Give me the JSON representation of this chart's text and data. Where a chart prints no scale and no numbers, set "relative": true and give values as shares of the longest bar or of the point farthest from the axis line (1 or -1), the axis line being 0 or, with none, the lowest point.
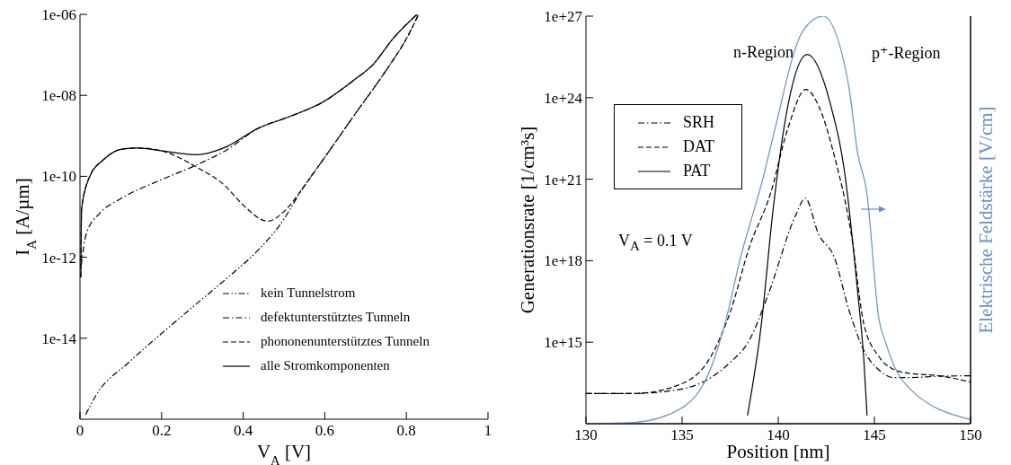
{
  "chart_data": [
    {
      "type": "line",
      "xlabel": "V$_{A}$ [V]",
      "ylabel": "I$_{A}$ [A/µm]",
      "log": "y",
      "legend": "bottom right",
      "xlim": [
        0,
        1
      ],
      "xticks": [
        0,
        0.2,
        0.4,
        0.6,
        0.8,
        1
      ],
      "ylim": [
        1e-16,
        1e-06
      ],
      "yticks": [
        {
          "value": 1e-14,
          "label": "1e-14"
        },
        {
          "value": 1e-12,
          "label": "1e-12"
        },
        {
          "value": 1e-10,
          "label": "1e-10"
        },
        {
          "value": 1e-08,
          "label": "1e-08"
        },
        {
          "value": 1e-06,
          "label": "1e-06"
        }
      ],
      "series": [
        {
          "name": "kein Tunnelstrom",
          "color": "#000000",
          "line_style": "dashdotdot",
          "x": [
            0.014,
            0.04,
            0.119,
            0.198,
            0.277,
            0.356,
            0.435,
            0.49,
            0.55,
            0.606,
            0.672,
            0.75,
            0.8,
            0.83
          ],
          "values": [
            1.3e-16,
            4e-16,
            2.5e-15,
            1.26e-14,
            6e-14,
            2.8e-13,
            1.45e-12,
            6.3e-12,
            5.8e-11,
            3.6e-10,
            3.2e-09,
            4.1e-08,
            2.5e-07,
            1e-06
          ]
        },
        {
          "name": "defektunterstütztes Tunneln",
          "color": "#000000",
          "line_style": "dashdot",
          "x": [
            0.003,
            0.016,
            0.05,
            0.1,
            0.2,
            0.28,
            0.36,
            0.435,
            0.514,
            0.593,
            0.672,
            0.72,
            0.767,
            0.826
          ],
          "values": [
            6.3e-13,
            4e-12,
            1.26e-11,
            2.8e-11,
            8.3e-11,
            1.8e-10,
            4.5e-10,
            1.5e-09,
            3e-09,
            6.6e-09,
            2.4e-08,
            6e-08,
            2.5e-07,
            1e-06
          ]
        },
        {
          "name": "phononenunterstütztes Tunneln",
          "color": "#000000",
          "line_style": "dashed",
          "x": [
            0.002,
            0.004,
            0.024,
            0.056,
            0.103,
            0.143,
            0.198,
            0.285,
            0.356,
            0.4,
            0.46,
            0.5,
            0.55,
            0.606,
            0.672,
            0.75,
            0.8,
            0.83
          ],
          "values": [
            3.2e-13,
            1.6e-11,
            1e-10,
            2.5e-10,
            4.7e-10,
            5e-10,
            4.3e-10,
            1.7e-10,
            5.8e-11,
            1.95e-11,
            7.8e-12,
            1.35e-11,
            5.8e-11,
            3.6e-10,
            3.2e-09,
            4.1e-08,
            2.5e-07,
            1e-06
          ]
        },
        {
          "name": "alle Stromkomponenten",
          "color": "#000000",
          "line_style": "solid",
          "x": [
            0.002,
            0.004,
            0.024,
            0.056,
            0.103,
            0.143,
            0.198,
            0.285,
            0.356,
            0.435,
            0.514,
            0.593,
            0.672,
            0.72,
            0.767,
            0.826
          ],
          "values": [
            3.2e-13,
            1.6e-11,
            1e-10,
            2.5e-10,
            4.7e-10,
            5e-10,
            4.3e-10,
            3.4e-10,
            5.2e-10,
            1.5e-09,
            3e-09,
            6.6e-09,
            2.4e-08,
            6e-08,
            2.5e-07,
            1e-06
          ]
        }
      ]
    },
    {
      "type": "line",
      "xlabel": "Position [nm]",
      "ylabel": "Generationsrate [1/cm³s]",
      "log": "y",
      "legend": "top left",
      "annotations": [
        "n-Region",
        "p⁺-Region",
        "V$_{A}$ = 0.1 V"
      ],
      "xlim": [
        130,
        150
      ],
      "xticks": [
        130,
        135,
        140,
        145,
        150
      ],
      "ylim": [
        1000000000000.0,
        1e+27
      ],
      "yticks": [
        {
          "value": 1000000000000000.0,
          "label": "1e+15"
        },
        {
          "value": 1e+18,
          "label": "1e+18"
        },
        {
          "value": 1e+21,
          "label": "1e+21"
        },
        {
          "value": 1e+24,
          "label": "1e+24"
        },
        {
          "value": 1e+27,
          "label": "1e+27"
        }
      ],
      "series": [
        {
          "name": "SRH",
          "color": "#000000",
          "line_style": "dashdot",
          "x": [
            130,
            132.5,
            135,
            136.5,
            137.5,
            138.5,
            139.5,
            140.9,
            141.4,
            142.1,
            142.9,
            143.7,
            144.45,
            145.2,
            146,
            146.8,
            148.4,
            150
          ],
          "values": [
            13000000000000.0,
            13000000000000.0,
            19000000000000.0,
            50000000000000.0,
            180000000000000.0,
            1200000000000000.0,
            6.3e+16,
            4.6e+19,
            2e+20,
            9.3e+18,
            1.4e+18,
            1.35e+16,
            500000000000000.0,
            100000000000000.0,
            50000000000000.0,
            50000000000000.0,
            56000000000000.0,
            58000000000000.0
          ]
        },
        {
          "name": "DAT",
          "color": "#000000",
          "line_style": "dashed",
          "x": [
            130,
            132.5,
            135,
            136.5,
            137.5,
            138.5,
            139.6,
            140.5,
            141.43,
            142.1,
            142.9,
            143.8,
            144.45,
            145.23,
            146,
            146.8,
            148.4,
            150
          ],
          "values": [
            13000000000000.0,
            13000000000000.0,
            30000000000000.0,
            300000000000000.0,
            1.26e+16,
            3.2e+18,
            3e+20,
            7.4e+22,
            2e+24,
            5e+23,
            8e+21,
            9.3e+18,
            4700000000000000.0,
            300000000000000.0,
            100000000000000.0,
            72000000000000.0,
            58000000000000.0,
            34000000000000.0
          ]
        },
        {
          "name": "PAT",
          "color": "#000000",
          "line_style": "solid",
          "x": [
            138.4,
            139.1,
            139.74,
            140.5,
            141.5,
            142.7,
            143.5,
            144.13,
            144.45,
            144.62
          ],
          "values": [
            2000000000000.0,
            3400000000000000.0,
            8.5e+19,
            5e+23,
            3.9e+25,
            6.3e+23,
            1e+21,
            6.8e+16,
            230000000000000.0,
            2000000000000.0
          ]
        }
      ]
    },
    {
      "type": "line",
      "y2label": "Elektrische Feldstärke [V/cm]",
      "relative": true,
      "tick_labels": false,
      "xlim": [
        130,
        150
      ],
      "xticks": [
        130,
        135,
        140,
        145,
        150
      ],
      "series": [
        {
          "color": "#6a8fd0",
          "line_style": "solid",
          "axis": "y2",
          "x": [
            130,
            132.5,
            135,
            136.5,
            137.3,
            138,
            139.26,
            139.74,
            141.3,
            142.33,
            143.66,
            144.13,
            144.6,
            145.23,
            145.6,
            146.2,
            146.8,
            150
          ],
          "values": [
            0,
            0.003,
            0.039,
            0.137,
            0.258,
            0.4,
            0.612,
            0.706,
            0.965,
            1,
            0.83,
            0.664,
            0.569,
            0.258,
            0.197,
            0.125,
            0.088,
            0.01
          ]
        }
      ]
    }
  ]
}
